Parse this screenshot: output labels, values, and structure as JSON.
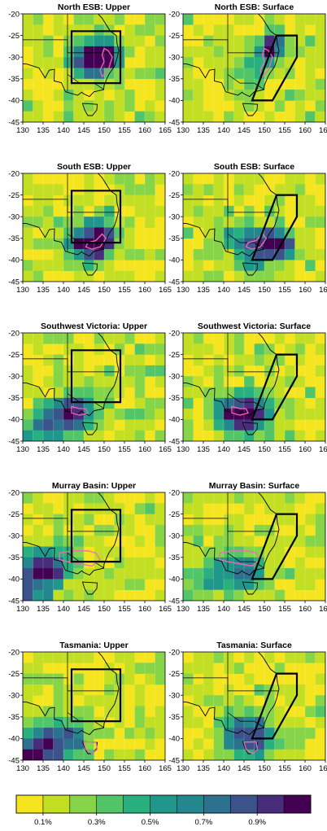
{
  "chart_data": {
    "type": "heatmap",
    "xlim": [
      130,
      165
    ],
    "ylim": [
      -45,
      -20
    ],
    "x_ticks": [
      "130",
      "135",
      "140",
      "145",
      "150",
      "155",
      "160",
      "165"
    ],
    "y_ticks": [
      "-20",
      "-25",
      "-30",
      "-35",
      "-40",
      "-45"
    ],
    "background_color": "#f5e51f",
    "panels": [
      {
        "title": "North ESB: Upper",
        "region": "upper",
        "hotspots": [
          [
            148,
            -30,
            0.9,
            3.2
          ],
          [
            151,
            -30,
            0.6,
            2.0
          ],
          [
            145,
            -31,
            0.4,
            2.5
          ]
        ],
        "pink_outline": [
          [
            150,
            -28
          ],
          [
            151,
            -28.5
          ],
          [
            152,
            -30
          ],
          [
            151,
            -33
          ],
          [
            149.5,
            -34.5
          ],
          [
            149,
            -33
          ],
          [
            150,
            -31
          ],
          [
            149.5,
            -29.5
          ]
        ]
      },
      {
        "title": "North ESB: Surface",
        "region": "surface",
        "hotspots": [
          [
            152,
            -27,
            0.85,
            2.0
          ],
          [
            150,
            -30,
            0.4,
            2.5
          ],
          [
            146,
            -34,
            0.25,
            3.0
          ]
        ],
        "pink_outline": [
          [
            150,
            -28
          ],
          [
            151,
            -28.5
          ],
          [
            152,
            -30
          ],
          [
            151,
            -33
          ],
          [
            149.5,
            -34.5
          ],
          [
            149,
            -33
          ],
          [
            150,
            -31
          ],
          [
            149.5,
            -29.5
          ]
        ]
      },
      {
        "title": "South ESB: Upper",
        "region": "upper",
        "hotspots": [
          [
            147,
            -36.5,
            0.8,
            3.0
          ],
          [
            150,
            -34,
            0.5,
            2.5
          ],
          [
            143,
            -36,
            0.35,
            3.0
          ]
        ],
        "pink_outline": [
          [
            149.5,
            -34
          ],
          [
            150.5,
            -35
          ],
          [
            149,
            -37
          ],
          [
            147,
            -37.5
          ],
          [
            145.5,
            -37
          ],
          [
            146,
            -36
          ],
          [
            148,
            -35.5
          ]
        ]
      },
      {
        "title": "South ESB: Surface",
        "region": "surface",
        "hotspots": [
          [
            152,
            -36,
            1.0,
            2.2
          ],
          [
            148,
            -37,
            0.65,
            2.8
          ],
          [
            155,
            -37,
            0.5,
            2.0
          ],
          [
            143,
            -36,
            0.3,
            3.0
          ]
        ],
        "pink_outline": [
          [
            149.5,
            -34
          ],
          [
            150.5,
            -35
          ],
          [
            149,
            -37
          ],
          [
            147,
            -37.5
          ],
          [
            145.5,
            -37
          ],
          [
            146,
            -36
          ],
          [
            148,
            -35.5
          ]
        ]
      },
      {
        "title": "Southwest Victoria: Upper",
        "region": "upper",
        "hotspots": [
          [
            144,
            -38,
            0.7,
            3.0
          ],
          [
            135,
            -42,
            0.5,
            3.5
          ],
          [
            140,
            -39,
            0.4,
            3.0
          ]
        ],
        "pink_outline": [
          [
            142,
            -37
          ],
          [
            144,
            -37.5
          ],
          [
            145.5,
            -37.5
          ],
          [
            146,
            -38.5
          ],
          [
            144,
            -39
          ],
          [
            142,
            -38.5
          ]
        ]
      },
      {
        "title": "Southwest Victoria: Surface",
        "region": "surface",
        "hotspots": [
          [
            145,
            -39,
            0.9,
            3.0
          ],
          [
            141,
            -38,
            0.4,
            3.0
          ],
          [
            149,
            -38,
            0.35,
            3.0
          ]
        ],
        "pink_outline": [
          [
            142,
            -37
          ],
          [
            144,
            -37.5
          ],
          [
            145.5,
            -37.5
          ],
          [
            146,
            -38.5
          ],
          [
            144,
            -39
          ],
          [
            142,
            -38.5
          ]
        ]
      },
      {
        "title": "Murray Basin: Upper",
        "region": "upper",
        "hotspots": [
          [
            134,
            -38,
            0.75,
            3.5
          ],
          [
            139,
            -37,
            0.5,
            3.0
          ],
          [
            131,
            -43,
            0.4,
            3.0
          ]
        ],
        "pink_outline": [
          [
            139,
            -34
          ],
          [
            142,
            -33.5
          ],
          [
            146,
            -33.5
          ],
          [
            148,
            -34
          ],
          [
            149,
            -35.5
          ],
          [
            147,
            -37
          ],
          [
            144,
            -36.5
          ],
          [
            141,
            -36
          ],
          [
            139,
            -35.5
          ]
        ]
      },
      {
        "title": "Murray Basin: Surface",
        "region": "surface",
        "hotspots": [
          [
            142,
            -38,
            0.45,
            3.5
          ],
          [
            147,
            -38,
            0.35,
            3.0
          ],
          [
            135,
            -40,
            0.3,
            3.0
          ]
        ],
        "pink_outline": [
          [
            139,
            -34
          ],
          [
            142,
            -33.5
          ],
          [
            146,
            -33.5
          ],
          [
            148,
            -34
          ],
          [
            149,
            -35.5
          ],
          [
            147,
            -37
          ],
          [
            144,
            -36.5
          ],
          [
            141,
            -36
          ],
          [
            139,
            -35.5
          ]
        ]
      },
      {
        "title": "Tasmania: Upper",
        "region": "upper",
        "hotspots": [
          [
            136,
            -42,
            0.85,
            3.5
          ],
          [
            142,
            -40,
            0.5,
            3.0
          ],
          [
            131,
            -44,
            0.6,
            2.5
          ]
        ],
        "pink_outline": [
          [
            145,
            -40.8
          ],
          [
            148,
            -40.8
          ],
          [
            148.3,
            -42.5
          ],
          [
            147,
            -43.5
          ],
          [
            145.5,
            -42.5
          ]
        ]
      },
      {
        "title": "Tasmania: Surface",
        "region": "surface",
        "hotspots": [
          [
            146,
            -40,
            0.5,
            3.5
          ],
          [
            143,
            -39,
            0.35,
            3.5
          ],
          [
            150,
            -40,
            0.3,
            3.0
          ]
        ],
        "pink_outline": [
          [
            145,
            -40.8
          ],
          [
            148,
            -40.8
          ],
          [
            148.3,
            -42.5
          ],
          [
            147,
            -43.5
          ],
          [
            145.5,
            -42.5
          ]
        ]
      }
    ],
    "upper_box": [
      [
        142,
        -24
      ],
      [
        154,
        -24
      ],
      [
        154,
        -36
      ],
      [
        142,
        -36
      ]
    ],
    "surface_box": [
      [
        153,
        -25
      ],
      [
        158,
        -25
      ],
      [
        158,
        -30
      ],
      [
        152,
        -40
      ],
      [
        147,
        -40
      ]
    ],
    "coastline": [
      [
        129,
        -31.5
      ],
      [
        131,
        -31.6
      ],
      [
        134,
        -32.5
      ],
      [
        135.5,
        -34.8
      ],
      [
        136.5,
        -33
      ],
      [
        137.8,
        -32.8
      ],
      [
        137.7,
        -35.5
      ],
      [
        139.5,
        -35.9
      ],
      [
        140.5,
        -38
      ],
      [
        142,
        -38.4
      ],
      [
        143.5,
        -38.8
      ],
      [
        144.5,
        -38.1
      ],
      [
        145,
        -38.5
      ],
      [
        146.4,
        -39.1
      ],
      [
        147.5,
        -38
      ],
      [
        149.9,
        -37.5
      ],
      [
        150,
        -36.5
      ],
      [
        150.9,
        -34.5
      ],
      [
        151.3,
        -33.8
      ],
      [
        152.5,
        -32.2
      ],
      [
        153.1,
        -30.5
      ],
      [
        153.6,
        -28.5
      ],
      [
        153.2,
        -27
      ],
      [
        153,
        -25
      ],
      [
        151.5,
        -24
      ],
      [
        150.5,
        -22.5
      ],
      [
        149.5,
        -21
      ],
      [
        148.5,
        -20
      ]
    ],
    "state_borders": [
      [
        [
          129,
          -26
        ],
        [
          141,
          -26
        ],
        [
          141,
          -29
        ],
        [
          153.5,
          -29
        ]
      ],
      [
        [
          141,
          -19
        ],
        [
          141,
          -38
        ]
      ],
      [
        [
          141,
          -34
        ],
        [
          144,
          -36
        ],
        [
          147.5,
          -36
        ],
        [
          150,
          -37.5
        ]
      ]
    ],
    "tasmania": [
      [
        144.7,
        -40.7
      ],
      [
        148.3,
        -40.9
      ],
      [
        148.2,
        -42.2
      ],
      [
        147.1,
        -43.5
      ],
      [
        146,
        -43.5
      ],
      [
        145.2,
        -42.2
      ]
    ],
    "colorbar": {
      "colors": [
        "#f5e51f",
        "#c2df23",
        "#86d549",
        "#52c569",
        "#2ab07f",
        "#1f988b",
        "#24878e",
        "#2c728e",
        "#3b528b",
        "#472d7b",
        "#440154"
      ],
      "tick_labels": [
        "0.1%",
        "0.3%",
        "0.5%",
        "0.7%",
        "0.9%"
      ]
    }
  }
}
